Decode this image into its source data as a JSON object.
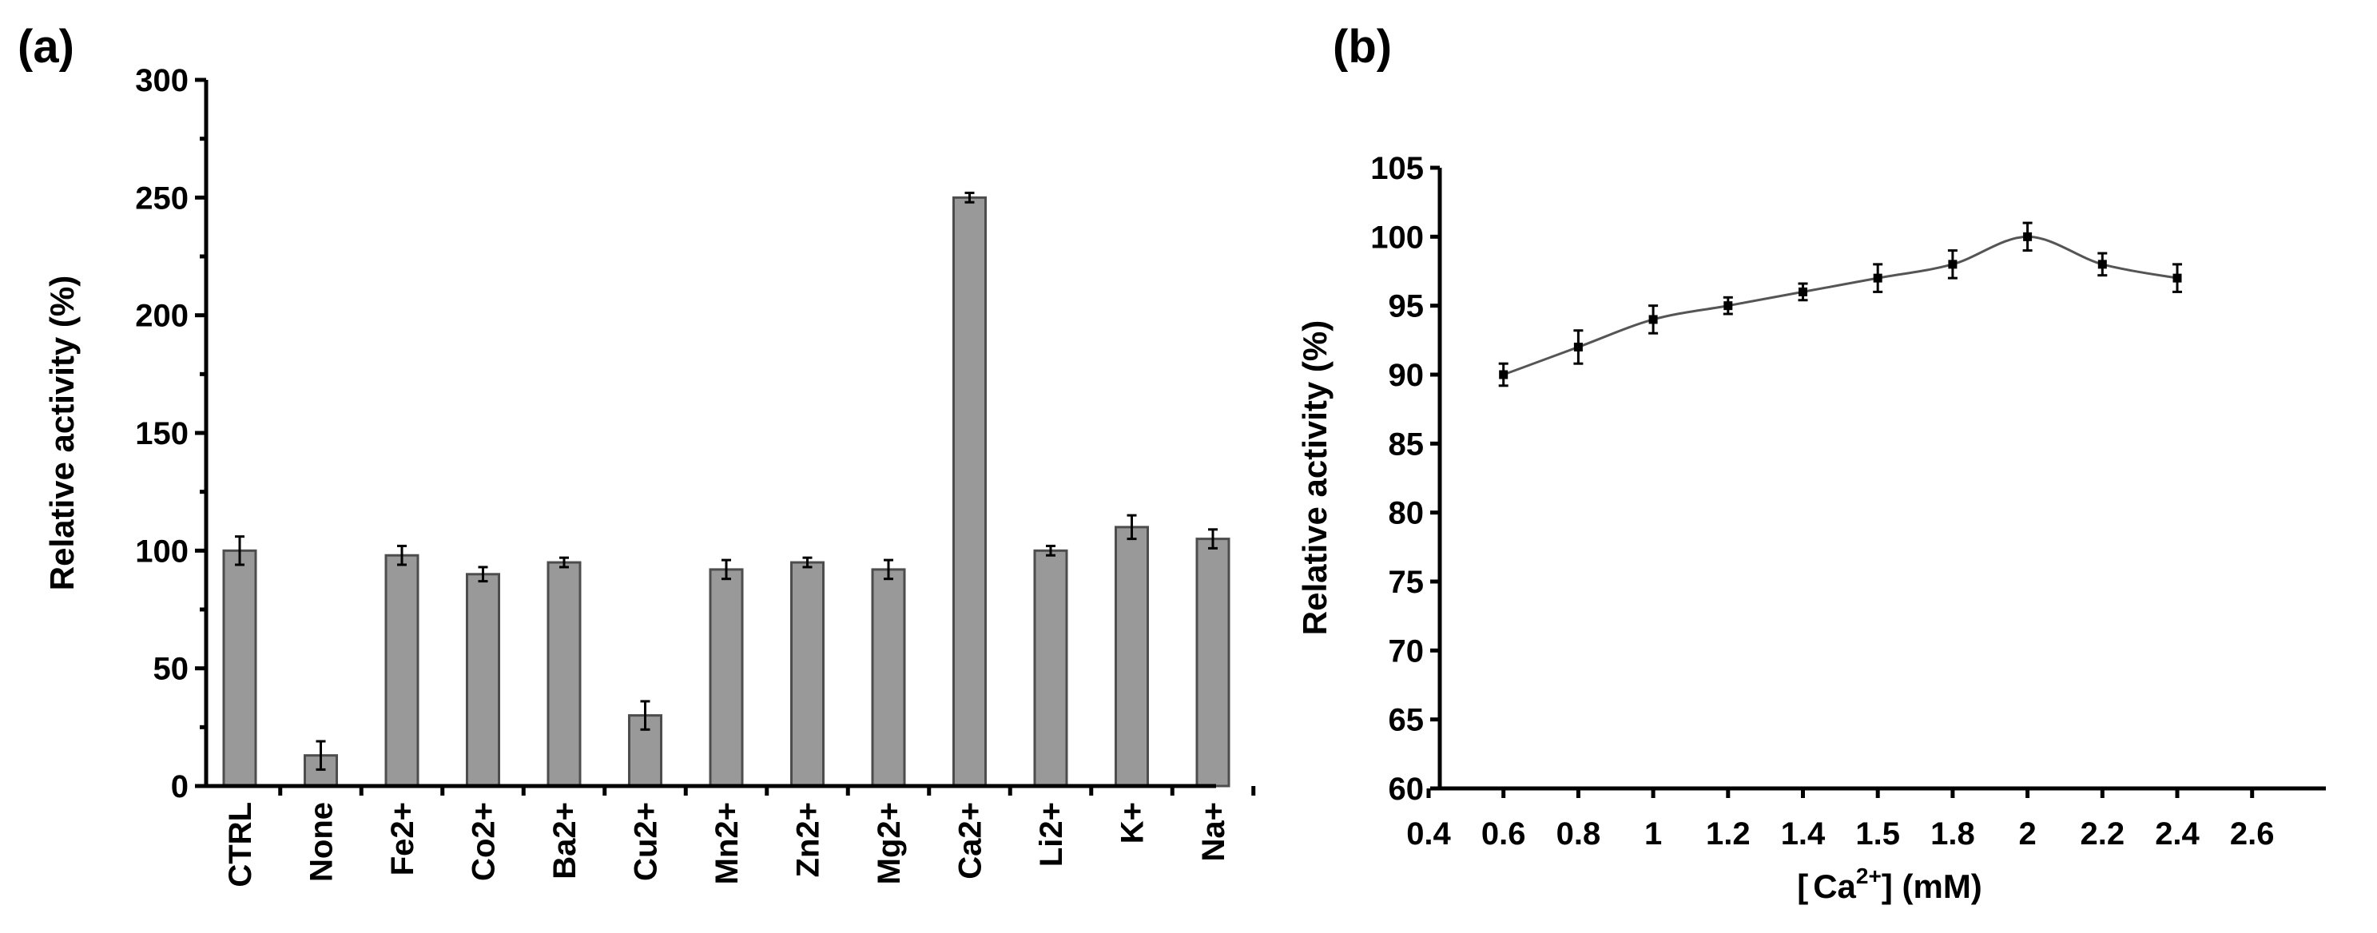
{
  "chart_data": [
    {
      "type": "bar",
      "panel_label": "(a)",
      "title": "",
      "xlabel": "",
      "ylabel": "Relative activity (%)",
      "ylim": [
        0,
        300
      ],
      "yticks": [
        0,
        50,
        100,
        150,
        200,
        250,
        300
      ],
      "categories": [
        "CTRL",
        "None",
        "Fe2+",
        "Co2+",
        "Ba2+",
        "Cu2+",
        "Mn2+",
        "Zn2+",
        "Mg2+",
        "Ca2+",
        "Li2+",
        "K+",
        "Na+"
      ],
      "values": [
        100,
        13,
        98,
        90,
        95,
        30,
        92,
        95,
        92,
        250,
        100,
        110,
        105
      ],
      "errors": [
        6,
        6,
        4,
        3,
        2,
        6,
        4,
        2,
        4,
        2,
        2,
        5,
        4
      ],
      "bar_color": "#999999"
    },
    {
      "type": "line",
      "panel_label": "(b)",
      "title": "",
      "xlabel_prefix": "[",
      "xlabel_ion": "Ca",
      "xlabel_sup": "2+",
      "xlabel_suffix": "] (mM)",
      "ylabel": "Relative activity (%)",
      "ylim": [
        60,
        105
      ],
      "yticks": [
        60,
        65,
        70,
        75,
        80,
        85,
        90,
        95,
        100,
        105
      ],
      "xtick_labels": [
        "0.4",
        "0.6",
        "0.8",
        "1",
        "1.2",
        "1.4",
        "1.5",
        "1.8",
        "2",
        "2.2",
        "2.4",
        "2.6"
      ],
      "x": [
        "0.6",
        "0.8",
        "1",
        "1.2",
        "1.4",
        "1.5",
        "1.8",
        "2",
        "2.2",
        "2.4"
      ],
      "values": [
        90,
        92,
        94,
        95,
        96,
        97,
        98,
        100,
        98,
        97
      ],
      "errors": [
        0.8,
        1.2,
        1.0,
        0.6,
        0.6,
        1.0,
        1.0,
        1.0,
        0.8,
        1.0
      ],
      "line_color": "#555555"
    }
  ]
}
